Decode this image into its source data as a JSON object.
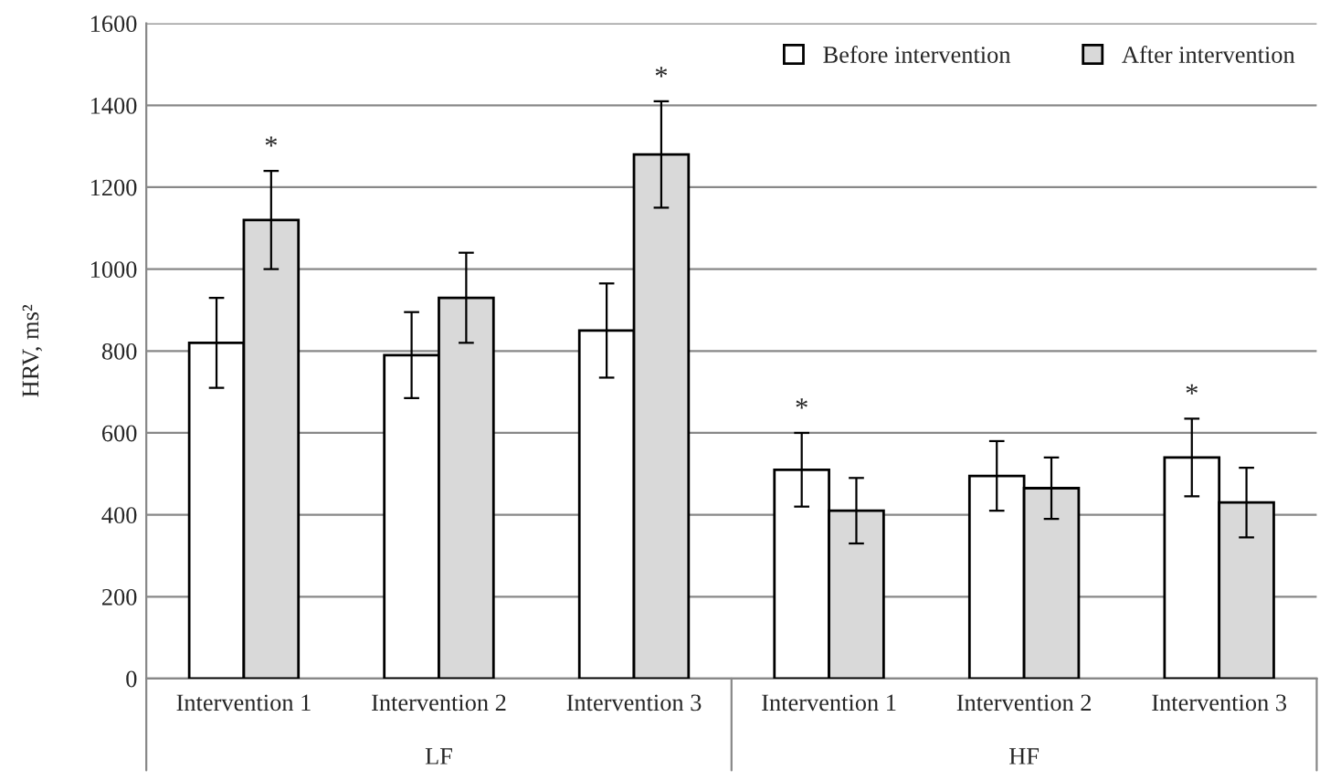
{
  "chart_data": {
    "type": "bar",
    "ylabel": "HRV, ms²",
    "categories": [
      "Intervention 1",
      "Intervention 2",
      "Intervention 3",
      "Intervention 1",
      "Intervention 2",
      "Intervention 3"
    ],
    "series": [
      {
        "name": "Before intervention",
        "color": "#ffffff",
        "values": [
          820,
          790,
          850,
          510,
          495,
          540
        ],
        "errors": [
          110,
          105,
          115,
          90,
          85,
          95
        ],
        "value_labels": [
          null,
          null,
          null,
          "*",
          null,
          "*"
        ]
      },
      {
        "name": "After intervention",
        "color": "#d9d9d9",
        "values": [
          1120,
          930,
          1280,
          410,
          465,
          430
        ],
        "errors": [
          120,
          110,
          130,
          80,
          75,
          85
        ],
        "value_labels": [
          "*",
          null,
          "*",
          null,
          null,
          null
        ]
      }
    ],
    "annotations": [
      "LF",
      "HF"
    ],
    "ylim": [
      0,
      1600
    ],
    "yticks": [
      0,
      200,
      400,
      600,
      800,
      1000,
      1200,
      1400,
      1600
    ],
    "grid": "y",
    "legend": "top right"
  }
}
